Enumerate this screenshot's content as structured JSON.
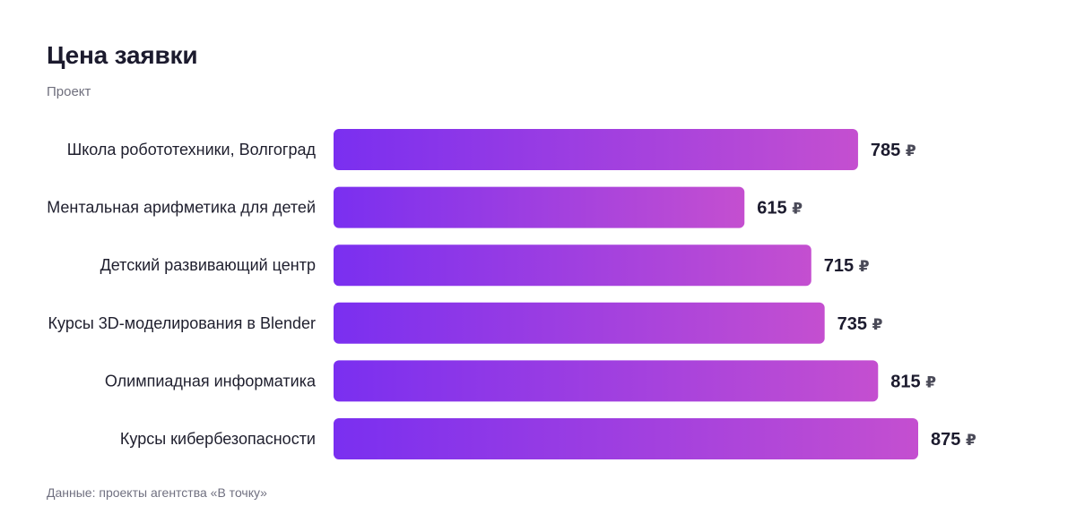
{
  "title": "Цена заявки",
  "subtitle": "Проект",
  "source": "Данные: проекты агентства «В точку»",
  "colors": {
    "bar_start": "#7a2ff0",
    "bar_end": "#c44fd0"
  },
  "chart_data": {
    "type": "bar",
    "orientation": "horizontal",
    "categories": [
      "Школа робототехники, Волгоград",
      "Ментальная арифметика для детей",
      "Детский развивающий центр",
      "Курсы 3D-моделирования в Blender",
      "Олимпиадная информатика",
      "Курсы кибербезопасности"
    ],
    "values": [
      785,
      615,
      715,
      735,
      815,
      875
    ],
    "value_unit": "₽",
    "xlim": [
      0,
      875
    ],
    "grid": false,
    "legend": "none"
  }
}
